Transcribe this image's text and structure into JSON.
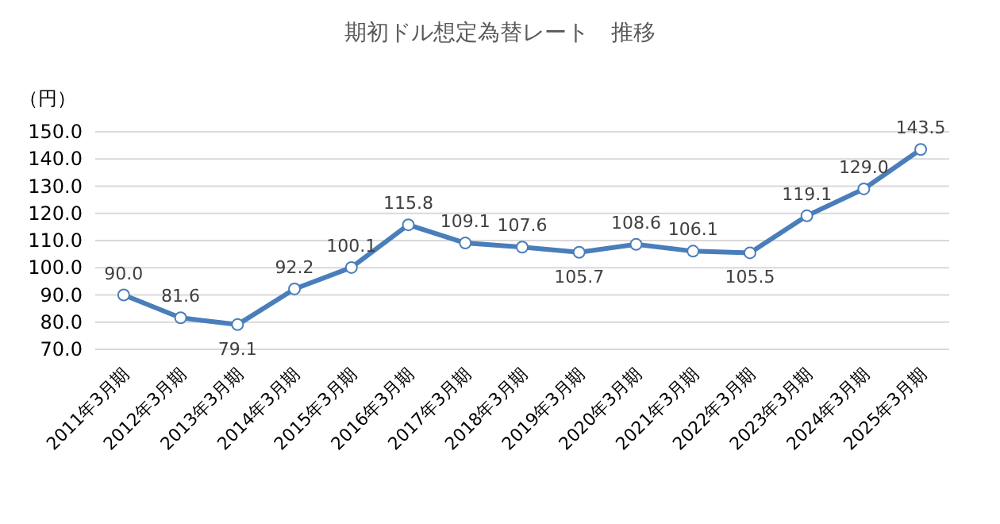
{
  "chart_data": {
    "type": "line",
    "title": "期初ドル想定為替レート　推移",
    "ylabel": "（円）",
    "categories": [
      "2011年3月期",
      "2012年3月期",
      "2013年3月期",
      "2014年3月期",
      "2015年3月期",
      "2016年3月期",
      "2017年3月期",
      "2018年3月期",
      "2019年3月期",
      "2020年3月期",
      "2021年3月期",
      "2022年3月期",
      "2023年3月期",
      "2024年3月期",
      "2025年3月期"
    ],
    "series": [
      {
        "color": "#4a7ebb",
        "values": [
          90.0,
          81.6,
          79.1,
          92.2,
          100.1,
          115.8,
          109.1,
          107.6,
          105.7,
          108.6,
          106.1,
          105.5,
          119.1,
          129.0,
          143.5
        ],
        "value_labels": [
          "90.0",
          "81.6",
          "79.1",
          "92.2",
          "100.1",
          "115.8",
          "109.1",
          "107.6",
          "105.7",
          "108.6",
          "106.1",
          "105.5",
          "119.1",
          "129.0",
          "143.5"
        ]
      }
    ],
    "ylim": [
      70,
      150
    ],
    "yticks": [
      {
        "value": 70,
        "label": "70.0"
      },
      {
        "value": 80,
        "label": "80.0"
      },
      {
        "value": 90,
        "label": "90.0"
      },
      {
        "value": 100,
        "label": "100.0"
      },
      {
        "value": 110,
        "label": "110.0"
      },
      {
        "value": 120,
        "label": "120.0"
      },
      {
        "value": 130,
        "label": "130.0"
      },
      {
        "value": 140,
        "label": "140.0"
      },
      {
        "value": 150,
        "label": "150.0"
      }
    ],
    "grid": "y",
    "marker": "circle",
    "line_style": "solid"
  }
}
